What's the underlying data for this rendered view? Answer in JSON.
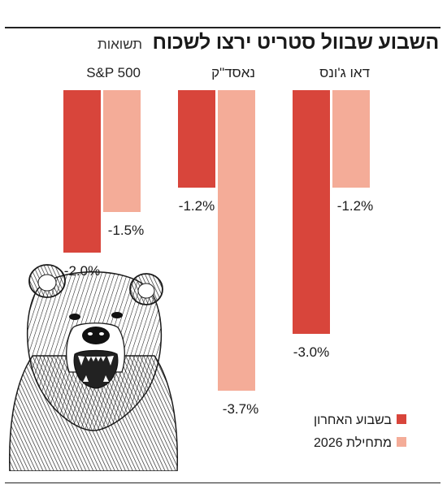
{
  "title": "השבוע שבוול סטריט ירצו לשכוח",
  "subtitle": "תשואות",
  "chart_data": {
    "type": "bar",
    "categories": [
      "S&P 500",
      "נאסד\"ק",
      "דאו ג'ונס"
    ],
    "series": [
      {
        "name": "בשבוע האחרון",
        "values": [
          -2.0,
          -1.2,
          -3.0
        ],
        "labels": [
          "-2.0%",
          "-1.2%",
          "-3.0%"
        ],
        "color": "#d8453b"
      },
      {
        "name": "מתחילת 2026",
        "values": [
          -1.5,
          -3.7,
          -1.2
        ],
        "labels": [
          "-1.5%",
          "-3.7%",
          "-1.2%"
        ],
        "color": "#f4ac98"
      }
    ],
    "ylim": [
      -4.0,
      0
    ],
    "grid": false,
    "legend_position": "bottom-right"
  },
  "colors": {
    "weekly": "#d8453b",
    "ytd": "#f4ac98",
    "text": "#1a1a1a"
  },
  "illustration": "bear-head-sketch"
}
